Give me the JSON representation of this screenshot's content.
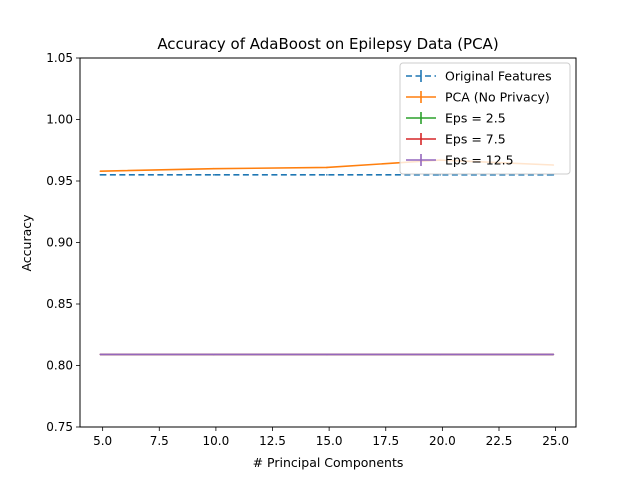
{
  "chart_data": {
    "type": "line",
    "title": "Accuracy of AdaBoost on Epilepsy Data (PCA)",
    "xlabel": "# Principal Components",
    "ylabel": "Accuracy",
    "xlim": [
      4.0,
      25.9
    ],
    "ylim": [
      0.75,
      1.05
    ],
    "xticks": [
      5.0,
      7.5,
      10.0,
      12.5,
      15.0,
      17.5,
      20.0,
      22.5,
      25.0
    ],
    "xtick_labels": [
      "5.0",
      "7.5",
      "10.0",
      "12.5",
      "15.0",
      "17.5",
      "20.0",
      "22.5",
      "25.0"
    ],
    "yticks": [
      0.75,
      0.8,
      0.85,
      0.9,
      0.95,
      1.0,
      1.05
    ],
    "ytick_labels": [
      "0.75",
      "0.80",
      "0.85",
      "0.90",
      "0.95",
      "1.00",
      "1.05"
    ],
    "grid": false,
    "legend_position": "top-right",
    "x": [
      4.9,
      9.9,
      14.9,
      19.9,
      24.9
    ],
    "series": [
      {
        "name": "Original Features",
        "color": "#1f77b4",
        "dashed": true,
        "values": [
          0.955,
          0.955,
          0.955,
          0.955,
          0.955
        ]
      },
      {
        "name": "PCA (No Privacy)",
        "color": "#ff7f0e",
        "dashed": false,
        "values": [
          0.958,
          0.96,
          0.961,
          0.967,
          0.963
        ]
      },
      {
        "name": "Eps = 2.5",
        "color": "#2ca02c",
        "dashed": false,
        "values": [
          0.809,
          0.809,
          0.809,
          0.809,
          0.809
        ]
      },
      {
        "name": "Eps = 7.5",
        "color": "#d62728",
        "dashed": false,
        "values": [
          0.809,
          0.809,
          0.809,
          0.809,
          0.809
        ]
      },
      {
        "name": "Eps = 12.5",
        "color": "#9467bd",
        "dashed": false,
        "values": [
          0.809,
          0.809,
          0.809,
          0.809,
          0.809
        ]
      }
    ]
  }
}
